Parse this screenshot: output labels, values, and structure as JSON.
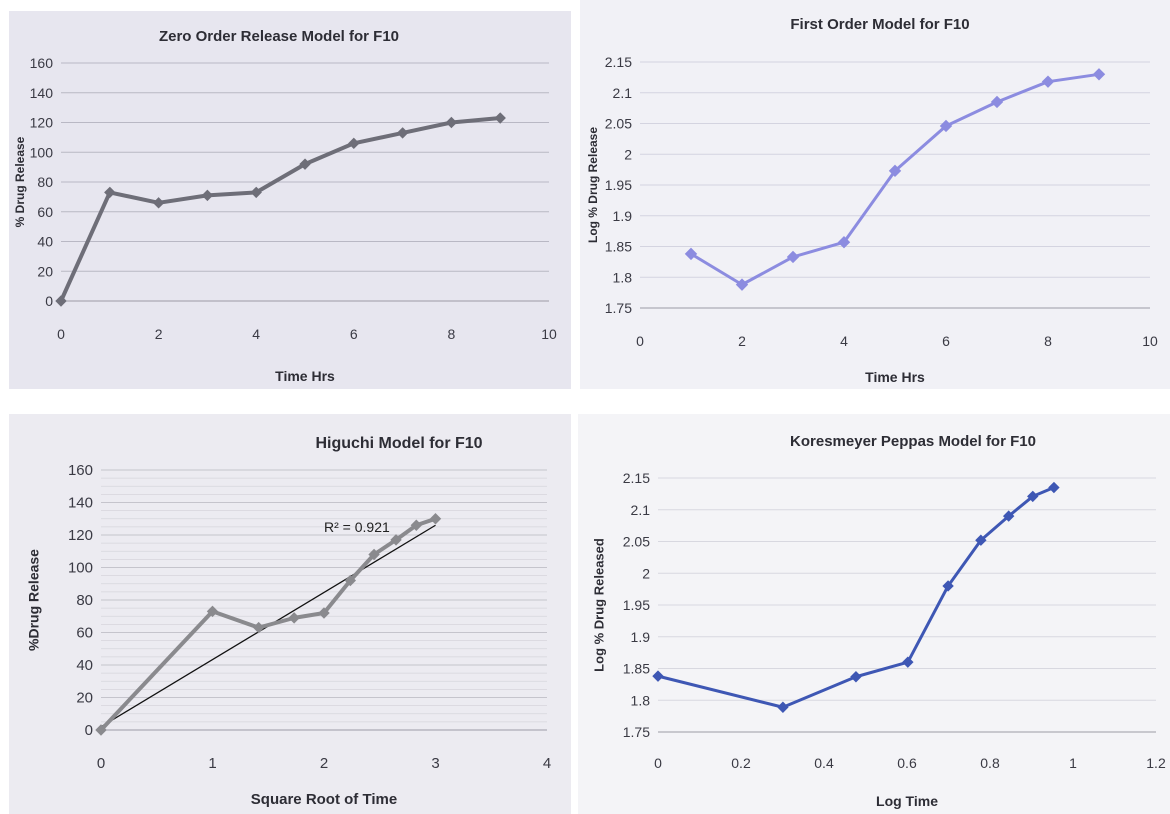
{
  "chart_data": [
    {
      "type": "line",
      "title": "Zero Order Release Model for F10",
      "xlabel": "Time Hrs",
      "ylabel": "% Drug Release",
      "xlim": [
        0,
        10
      ],
      "ylim": [
        0,
        160
      ],
      "xticks": [
        "0",
        "2",
        "4",
        "6",
        "8",
        "10"
      ],
      "yticks": [
        "0",
        "20",
        "40",
        "60",
        "80",
        "100",
        "120",
        "140",
        "160"
      ],
      "grid": true,
      "color": "#6e6e78",
      "series": [
        {
          "x": [
            0,
            1,
            2,
            3,
            4,
            5,
            6,
            7,
            8,
            9
          ],
          "y": [
            0,
            73,
            66,
            71,
            73,
            92,
            106,
            113,
            120,
            123
          ]
        }
      ]
    },
    {
      "type": "line",
      "title": "First Order Model for F10",
      "xlabel": "Time Hrs",
      "ylabel": "Log % Drug Release",
      "xlim": [
        0,
        10
      ],
      "ylim": [
        1.75,
        2.15
      ],
      "xticks": [
        "0",
        "2",
        "4",
        "6",
        "8",
        "10"
      ],
      "yticks": [
        "1.75",
        "1.8",
        "1.85",
        "1.9",
        "1.95",
        "2",
        "2.05",
        "2.1",
        "2.15"
      ],
      "grid": true,
      "color": "#8c8ce0",
      "series": [
        {
          "x": [
            1,
            2,
            3,
            4,
            5,
            6,
            7,
            8,
            9
          ],
          "y": [
            1.838,
            1.788,
            1.833,
            1.857,
            1.973,
            2.046,
            2.085,
            2.118,
            2.13
          ]
        }
      ]
    },
    {
      "type": "line",
      "title": "Higuchi Model for F10",
      "xlabel": "Square Root of Time",
      "ylabel": "%Drug Release",
      "xlim": [
        0,
        4
      ],
      "ylim": [
        0,
        160
      ],
      "xticks": [
        "0",
        "1",
        "2",
        "3",
        "4"
      ],
      "yticks": [
        "0",
        "20",
        "40",
        "60",
        "80",
        "100",
        "120",
        "140",
        "160"
      ],
      "grid": true,
      "color": "#8a8a8e",
      "annotation": "R² = 0.921",
      "trendline": {
        "x": [
          0,
          3
        ],
        "y": [
          2,
          126
        ]
      },
      "series": [
        {
          "x": [
            0,
            1,
            1.414,
            1.732,
            2,
            2.236,
            2.449,
            2.646,
            2.828,
            3
          ],
          "y": [
            0,
            73,
            63,
            69,
            72,
            92,
            108,
            117,
            126,
            130
          ]
        }
      ]
    },
    {
      "type": "line",
      "title": "Koresmeyer Peppas Model for F10",
      "xlabel": "Log Time",
      "ylabel": "Log % Drug Released",
      "xlim": [
        0,
        1.2
      ],
      "ylim": [
        1.75,
        2.15
      ],
      "xticks": [
        "0",
        "0.2",
        "0.4",
        "0.6",
        "0.8",
        "1",
        "1.2"
      ],
      "yticks": [
        "1.75",
        "1.8",
        "1.85",
        "1.9",
        "1.95",
        "2",
        "2.05",
        "2.1",
        "2.15"
      ],
      "grid": true,
      "color": "#3e57b4",
      "series": [
        {
          "x": [
            0,
            0.301,
            0.477,
            0.602,
            0.699,
            0.778,
            0.845,
            0.903,
            0.954
          ],
          "y": [
            1.838,
            1.789,
            1.837,
            1.86,
            1.98,
            2.052,
            2.09,
            2.121,
            2.135
          ]
        }
      ]
    }
  ]
}
